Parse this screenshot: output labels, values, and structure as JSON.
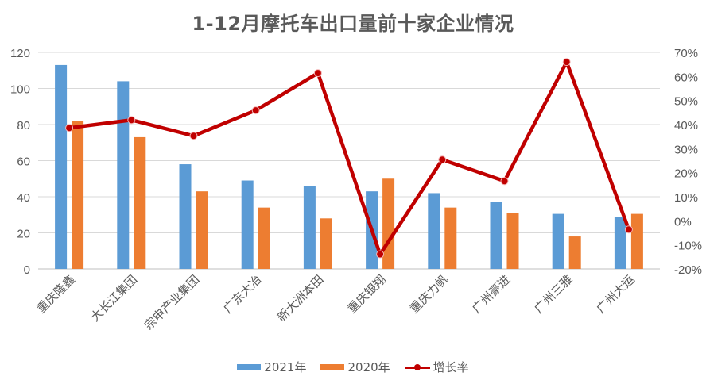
{
  "chart_data": {
    "type": "bar",
    "title": "1-12月摩托车出口量前十家企业情况",
    "xlabel": "",
    "ylabel": "",
    "y2label": "",
    "categories": [
      "重庆隆鑫",
      "大长江集团",
      "宗申产业集团",
      "广东大冶",
      "新大洲本田",
      "重庆银翔",
      "重庆力帆",
      "广州豪进",
      "广州三雅",
      "广州大运"
    ],
    "series": [
      {
        "name": "2021年",
        "type": "bar",
        "axis": "left",
        "color": "#5B9BD5",
        "values": [
          113,
          104,
          58,
          49,
          46,
          43,
          42,
          37,
          30.5,
          29
        ]
      },
      {
        "name": "2020年",
        "type": "bar",
        "axis": "left",
        "color": "#ED7D31",
        "values": [
          82,
          73,
          43,
          34,
          28,
          50,
          34,
          31,
          18,
          30.5
        ]
      },
      {
        "name": "增长率",
        "type": "line",
        "axis": "right",
        "color": "#C00000",
        "values": [
          38.6,
          41.9,
          35.3,
          45.9,
          61.4,
          -13.9,
          25.4,
          16.5,
          66.0,
          -3.6
        ],
        "unit": "%"
      }
    ],
    "ylim": [
      0,
      120
    ],
    "y_ticks": [
      0,
      20,
      40,
      60,
      80,
      100,
      120
    ],
    "y2lim": [
      -20,
      70
    ],
    "y2_ticks": [
      "-20%",
      "-10%",
      "0%",
      "10%",
      "20%",
      "30%",
      "40%",
      "50%",
      "60%",
      "70%"
    ],
    "grid": true,
    "legend_position": "bottom"
  },
  "legend": {
    "items": [
      "2021年",
      "2020年",
      "增长率"
    ]
  }
}
